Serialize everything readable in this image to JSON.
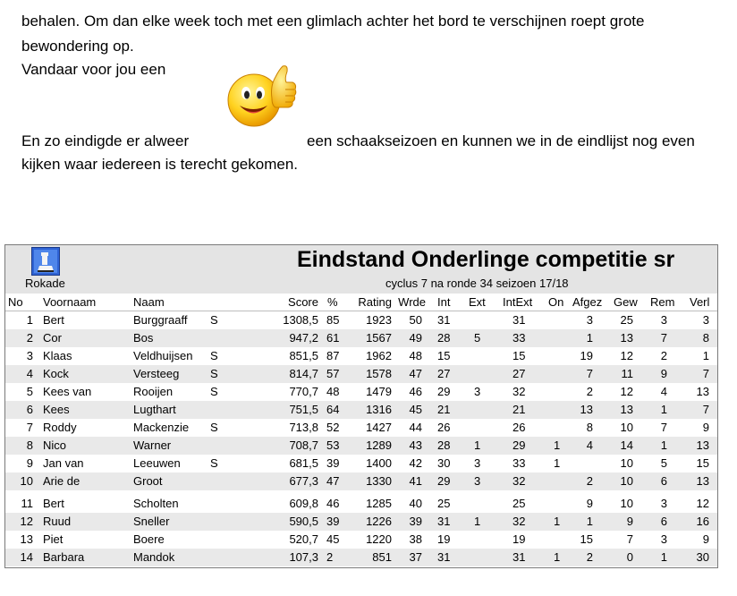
{
  "text": {
    "line1": "behalen. Om dan elke week toch met een glimlach achter het bord te verschijnen roept grote",
    "line2": "bewondering op.",
    "line3": "Vandaar voor jou een",
    "line4a": "En zo eindigde er alweer",
    "line4b": "een schaakseizoen en kunnen we in de eindlijst nog even",
    "line5": "kijken waar iedereen is terecht gekomen."
  },
  "emoji_icon": "thumbs-up-smiley-icon",
  "table": {
    "logo_label": "Rokade",
    "title": "Eindstand Onderlinge competitie sr",
    "subtitle": "cyclus 7  na ronde 34  seizoen 17/18",
    "headers": {
      "no": "No",
      "voornaam": "Voornaam",
      "naam": "Naam",
      "score": "Score",
      "pct": "%",
      "rating": "Rating",
      "wrde": "Wrde",
      "int": "Int",
      "ext": "Ext",
      "intext": "IntExt",
      "on": "On",
      "afgez": "Afgez",
      "gew": "Gew",
      "rem": "Rem",
      "verl": "Verl"
    },
    "rows": [
      {
        "no": "1",
        "voornaam": "Bert",
        "naam": "Burggraaff",
        "s": "S",
        "score": "1308,5",
        "pct": "85",
        "rating": "1923",
        "wrde": "50",
        "int": "31",
        "ext": "",
        "intext": "31",
        "on": "",
        "afgez": "3",
        "gew": "25",
        "rem": "3",
        "verl": "3"
      },
      {
        "no": "2",
        "voornaam": "Cor",
        "naam": "Bos",
        "s": "",
        "score": "947,2",
        "pct": "61",
        "rating": "1567",
        "wrde": "49",
        "int": "28",
        "ext": "5",
        "intext": "33",
        "on": "",
        "afgez": "1",
        "gew": "13",
        "rem": "7",
        "verl": "8"
      },
      {
        "no": "3",
        "voornaam": "Klaas",
        "naam": "Veldhuijsen",
        "s": "S",
        "score": "851,5",
        "pct": "87",
        "rating": "1962",
        "wrde": "48",
        "int": "15",
        "ext": "",
        "intext": "15",
        "on": "",
        "afgez": "19",
        "gew": "12",
        "rem": "2",
        "verl": "1"
      },
      {
        "no": "4",
        "voornaam": "Kock",
        "naam": "Versteeg",
        "s": "S",
        "score": "814,7",
        "pct": "57",
        "rating": "1578",
        "wrde": "47",
        "int": "27",
        "ext": "",
        "intext": "27",
        "on": "",
        "afgez": "7",
        "gew": "11",
        "rem": "9",
        "verl": "7"
      },
      {
        "no": "5",
        "voornaam": "Kees van",
        "naam": "Rooijen",
        "s": "S",
        "score": "770,7",
        "pct": "48",
        "rating": "1479",
        "wrde": "46",
        "int": "29",
        "ext": "3",
        "intext": "32",
        "on": "",
        "afgez": "2",
        "gew": "12",
        "rem": "4",
        "verl": "13"
      },
      {
        "no": "6",
        "voornaam": "Kees",
        "naam": "Lugthart",
        "s": "",
        "score": "751,5",
        "pct": "64",
        "rating": "1316",
        "wrde": "45",
        "int": "21",
        "ext": "",
        "intext": "21",
        "on": "",
        "afgez": "13",
        "gew": "13",
        "rem": "1",
        "verl": "7"
      },
      {
        "no": "7",
        "voornaam": "Roddy",
        "naam": "Mackenzie",
        "s": "S",
        "score": "713,8",
        "pct": "52",
        "rating": "1427",
        "wrde": "44",
        "int": "26",
        "ext": "",
        "intext": "26",
        "on": "",
        "afgez": "8",
        "gew": "10",
        "rem": "7",
        "verl": "9"
      },
      {
        "no": "8",
        "voornaam": "Nico",
        "naam": "Warner",
        "s": "",
        "score": "708,7",
        "pct": "53",
        "rating": "1289",
        "wrde": "43",
        "int": "28",
        "ext": "1",
        "intext": "29",
        "on": "1",
        "afgez": "4",
        "gew": "14",
        "rem": "1",
        "verl": "13"
      },
      {
        "no": "9",
        "voornaam": "Jan van",
        "naam": "Leeuwen",
        "s": "S",
        "score": "681,5",
        "pct": "39",
        "rating": "1400",
        "wrde": "42",
        "int": "30",
        "ext": "3",
        "intext": "33",
        "on": "1",
        "afgez": "",
        "gew": "10",
        "rem": "5",
        "verl": "15"
      },
      {
        "no": "10",
        "voornaam": "Arie de",
        "naam": "Groot",
        "s": "",
        "score": "677,3",
        "pct": "47",
        "rating": "1330",
        "wrde": "41",
        "int": "29",
        "ext": "3",
        "intext": "32",
        "on": "",
        "afgez": "2",
        "gew": "10",
        "rem": "6",
        "verl": "13"
      },
      {
        "no": "11",
        "voornaam": "Bert",
        "naam": "Scholten",
        "s": "",
        "score": "609,8",
        "pct": "46",
        "rating": "1285",
        "wrde": "40",
        "int": "25",
        "ext": "",
        "intext": "25",
        "on": "",
        "afgez": "9",
        "gew": "10",
        "rem": "3",
        "verl": "12"
      },
      {
        "no": "12",
        "voornaam": "Ruud",
        "naam": "Sneller",
        "s": "",
        "score": "590,5",
        "pct": "39",
        "rating": "1226",
        "wrde": "39",
        "int": "31",
        "ext": "1",
        "intext": "32",
        "on": "1",
        "afgez": "1",
        "gew": "9",
        "rem": "6",
        "verl": "16"
      },
      {
        "no": "13",
        "voornaam": "Piet",
        "naam": "Boere",
        "s": "",
        "score": "520,7",
        "pct": "45",
        "rating": "1220",
        "wrde": "38",
        "int": "19",
        "ext": "",
        "intext": "19",
        "on": "",
        "afgez": "15",
        "gew": "7",
        "rem": "3",
        "verl": "9"
      },
      {
        "no": "14",
        "voornaam": "Barbara",
        "naam": "Mandok",
        "s": "",
        "score": "107,3",
        "pct": "2",
        "rating": "851",
        "wrde": "37",
        "int": "31",
        "ext": "",
        "intext": "31",
        "on": "1",
        "afgez": "2",
        "gew": "0",
        "rem": "1",
        "verl": "30"
      }
    ]
  }
}
